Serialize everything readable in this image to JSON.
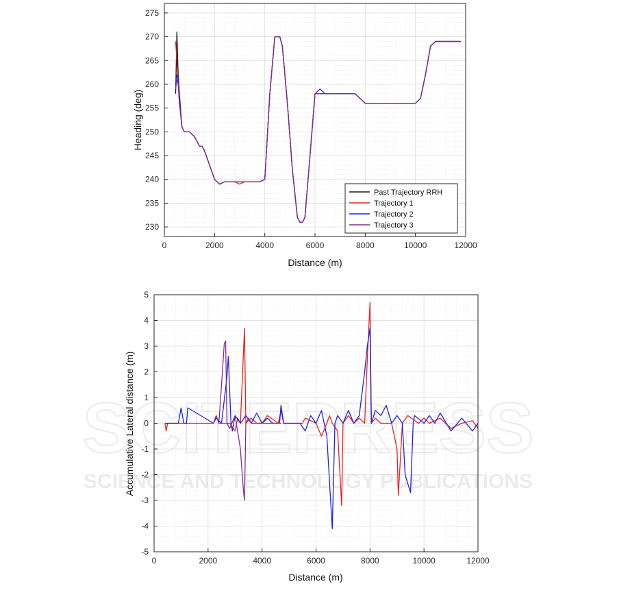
{
  "watermark": {
    "text": "SCITEPRESS",
    "subtext": "SCIENCE AND TECHNOLOGY PUBLICATIONS"
  },
  "colors": {
    "black": "#1a1a1a",
    "red": "#e8211d",
    "blue": "#1f1fe6",
    "purple": "#7e2f8e"
  },
  "chart_data": [
    {
      "type": "line",
      "xlabel": "Distance (m)",
      "ylabel": "Heading (deg)",
      "xlim": [
        0,
        12000
      ],
      "ylim": [
        228,
        277
      ],
      "xticks": [
        0,
        2000,
        4000,
        6000,
        8000,
        10000,
        12000
      ],
      "yticks": [
        230,
        235,
        240,
        245,
        250,
        255,
        260,
        265,
        270,
        275
      ],
      "grid": true,
      "legend_position": "bottom-right",
      "series": [
        {
          "name": "Past Trajectory RRH",
          "color": "#1a1a1a",
          "x": [
            450,
            500,
            550,
            600,
            700,
            800,
            1000,
            1200,
            1400,
            1500,
            1600,
            1800,
            2000,
            2200,
            2400,
            2600,
            2800,
            3000,
            3200,
            3400,
            3600,
            3800,
            4000,
            4200,
            4400,
            4600,
            4700,
            4900,
            5100,
            5300,
            5400,
            5500,
            5600,
            5800,
            6000,
            6200,
            6400,
            6800,
            7200,
            7600,
            7800,
            8000,
            8400,
            8800,
            9200,
            9600,
            10000,
            10200,
            10400,
            10600,
            10800,
            11200,
            11600,
            11800
          ],
          "y": [
            258,
            271,
            262,
            258,
            251,
            250,
            250,
            249,
            247,
            247,
            246,
            243,
            240,
            239,
            239.5,
            239.5,
            239.5,
            239.5,
            239.5,
            239.5,
            239.5,
            239.5,
            240,
            258,
            270,
            270,
            268,
            256,
            242,
            232,
            231,
            231,
            232,
            245,
            258,
            258,
            258,
            258,
            258,
            258,
            257,
            256,
            256,
            256,
            256,
            256,
            256,
            257,
            262,
            268,
            269,
            269,
            269,
            269
          ]
        },
        {
          "name": "Trajectory 1",
          "color": "#e8211d",
          "x": [
            450,
            500,
            550,
            600,
            700,
            800,
            1000,
            1200,
            1400,
            1500,
            1600,
            1800,
            2000,
            2200,
            2400,
            2600,
            2800,
            3000,
            3200,
            3400,
            3600,
            3800,
            4000,
            4200,
            4400,
            4600,
            4700,
            4900,
            5100,
            5300,
            5400,
            5500,
            5600,
            5800,
            6000,
            6200,
            6400,
            6800,
            7200,
            7600,
            7800,
            8000,
            8400,
            8800,
            9200,
            9600,
            10000,
            10200,
            10400,
            10600,
            10800,
            11200,
            11600,
            11800
          ],
          "y": [
            269,
            265,
            260,
            256,
            251,
            250,
            250,
            249,
            247,
            247,
            246,
            243,
            240,
            239,
            239.5,
            239.5,
            239.5,
            239,
            239.5,
            239.5,
            239.5,
            239.5,
            240,
            258,
            270,
            270,
            268,
            256,
            242,
            232,
            231,
            231,
            232,
            245,
            258,
            258,
            258,
            258,
            258,
            258,
            257,
            256,
            256,
            256,
            256,
            256,
            256,
            257,
            262,
            268,
            269,
            269,
            269,
            269
          ]
        },
        {
          "name": "Trajectory 2",
          "color": "#1f1fe6",
          "x": [
            450,
            500,
            550,
            600,
            700,
            800,
            1000,
            1200,
            1400,
            1500,
            1600,
            1800,
            2000,
            2200,
            2400,
            2600,
            2800,
            3000,
            3200,
            3400,
            3600,
            3800,
            4000,
            4200,
            4400,
            4600,
            4700,
            4900,
            5100,
            5300,
            5400,
            5500,
            5600,
            5800,
            6000,
            6200,
            6400,
            6800,
            7200,
            7600,
            7800,
            8000,
            8400,
            8800,
            9200,
            9600,
            10000,
            10200,
            10400,
            10600,
            10800,
            11200,
            11600,
            11800
          ],
          "y": [
            260,
            262,
            261,
            257,
            251,
            250,
            250,
            249,
            247,
            247,
            246,
            243,
            240,
            239,
            239.5,
            239.5,
            239.5,
            239.5,
            239.5,
            239.5,
            239.5,
            239.5,
            240,
            258,
            270,
            270,
            268,
            256,
            242,
            232,
            231,
            231,
            232,
            245,
            258,
            259,
            258,
            258,
            258,
            258,
            257,
            256,
            256,
            256,
            256,
            256,
            256,
            257,
            262,
            268,
            269,
            269,
            269,
            269
          ]
        },
        {
          "name": "Trajectory 3",
          "color": "#7e2f8e",
          "x": [
            450,
            500,
            550,
            600,
            700,
            800,
            1000,
            1200,
            1400,
            1500,
            1600,
            1800,
            2000,
            2200,
            2400,
            2600,
            2800,
            3000,
            3200,
            3400,
            3600,
            3800,
            4000,
            4200,
            4400,
            4600,
            4700,
            4900,
            5100,
            5300,
            5400,
            5500,
            5600,
            5800,
            6000,
            6200,
            6400,
            6800,
            7200,
            7600,
            7800,
            8000,
            8400,
            8800,
            9200,
            9600,
            10000,
            10200,
            10400,
            10600,
            10800,
            11200,
            11600,
            11800
          ],
          "y": [
            259,
            261,
            260,
            256,
            251,
            250,
            250,
            249,
            247,
            247,
            246,
            243,
            240,
            239,
            239.5,
            239.5,
            239.5,
            239.5,
            239.5,
            239.5,
            239.5,
            239.5,
            240,
            258,
            270,
            270,
            268,
            256,
            242,
            232,
            231,
            231,
            232,
            245,
            258,
            258,
            258,
            258,
            258,
            258,
            257,
            256,
            256,
            256,
            256,
            256,
            256,
            257,
            262,
            268,
            269,
            269,
            269,
            269
          ]
        }
      ]
    },
    {
      "type": "line",
      "xlabel": "Distance (m)",
      "ylabel": "Accumulative Lateral distance (m)",
      "xlim": [
        0,
        12000
      ],
      "ylim": [
        -5,
        5
      ],
      "xticks": [
        0,
        2000,
        4000,
        6000,
        8000,
        10000,
        12000
      ],
      "yticks": [
        -5,
        -4,
        -3,
        -2,
        -1,
        0,
        1,
        2,
        3,
        4,
        5
      ],
      "grid": true,
      "series": [
        {
          "name": "Trajectory 1",
          "color": "#e8211d",
          "x": [
            400,
            450,
            500,
            600,
            800,
            1000,
            1200,
            1400,
            2200,
            2300,
            2400,
            2800,
            3000,
            3100,
            3200,
            3350,
            3400,
            3600,
            3800,
            4000,
            4200,
            4600,
            4700,
            4800,
            5500,
            5600,
            6000,
            6200,
            6400,
            6500,
            6600,
            6800,
            6950,
            7000,
            7200,
            7400,
            7600,
            7800,
            7900,
            8000,
            8050,
            8200,
            8400,
            8800,
            9000,
            9050,
            9200,
            9400,
            9800,
            10000,
            10200,
            10600,
            11000,
            11400,
            11800,
            12000
          ],
          "y": [
            0,
            -0.3,
            0,
            0,
            0,
            0,
            0,
            0,
            0,
            0.3,
            0,
            0,
            -0.3,
            0.2,
            0,
            3.7,
            0,
            0.2,
            0,
            0,
            0.3,
            0,
            0.5,
            0,
            0,
            0.2,
            0,
            -0.5,
            0,
            0.3,
            0,
            -0.3,
            -3.2,
            0,
            0.3,
            0,
            0.2,
            0,
            2.5,
            4.7,
            0,
            0.2,
            0,
            0,
            -1.0,
            -2.8,
            0,
            0.3,
            0,
            0.2,
            0,
            0.2,
            -0.2,
            0,
            0.1,
            -0.2
          ]
        },
        {
          "name": "Trajectory 2",
          "color": "#1f1fe6",
          "x": [
            400,
            500,
            900,
            1000,
            1100,
            1200,
            1250,
            2200,
            2300,
            2500,
            2700,
            2750,
            2850,
            2900,
            3000,
            3200,
            3400,
            3600,
            3800,
            4000,
            4200,
            4400,
            4650,
            4700,
            4800,
            5400,
            5600,
            5800,
            6000,
            6200,
            6400,
            6600,
            6700,
            6800,
            7000,
            7200,
            7400,
            7600,
            7800,
            7900,
            8000,
            8050,
            8200,
            8400,
            8600,
            8800,
            9000,
            9200,
            9300,
            9500,
            9600,
            9650,
            10000,
            10200,
            10400,
            10600,
            11000,
            11400,
            11800,
            12000
          ],
          "y": [
            0,
            0,
            0,
            0.6,
            0,
            0,
            0.6,
            0,
            0.2,
            0,
            1.8,
            2.6,
            0,
            -0.3,
            0.3,
            0,
            0.3,
            0,
            0.4,
            0,
            0.2,
            0,
            0,
            0.7,
            0,
            0,
            -0.3,
            0.3,
            0,
            0.5,
            -0.5,
            -4.1,
            0,
            0.3,
            0,
            0.5,
            0,
            0.3,
            2.0,
            3.0,
            3.7,
            0,
            0.5,
            0.3,
            0.7,
            0,
            0.3,
            0,
            -2.0,
            -2.7,
            0,
            0.3,
            0,
            0.3,
            0,
            0.4,
            -0.3,
            0.2,
            -0.3,
            0
          ]
        },
        {
          "name": "Trajectory 3",
          "color": "#7e2f8e",
          "x": [
            2200,
            2300,
            2400,
            2500,
            2600,
            2650,
            2700,
            2800,
            3000,
            3200,
            3300,
            3350,
            3400,
            3500,
            3600,
            4700
          ],
          "y": [
            0,
            0.3,
            0,
            1.5,
            3.1,
            3.2,
            0,
            -0.2,
            0.3,
            -1.0,
            -2.5,
            -3.0,
            0,
            0.2,
            0,
            0
          ]
        }
      ]
    }
  ]
}
